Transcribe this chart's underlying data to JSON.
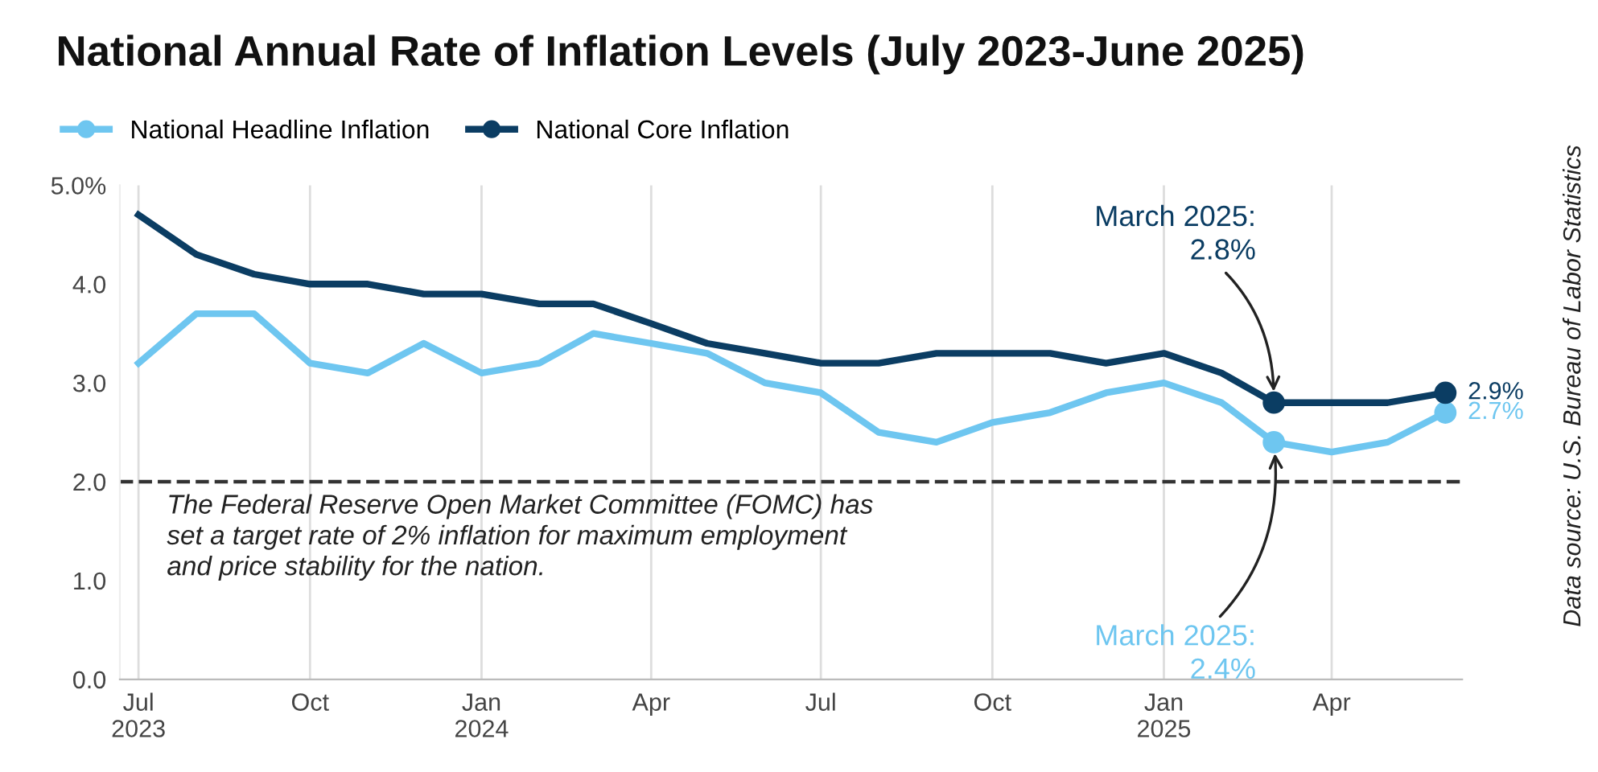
{
  "chart_data": {
    "type": "line",
    "title": "National Annual Rate of Inflation Levels (July 2023-June 2025)",
    "x": [
      "2023-07",
      "2023-08",
      "2023-09",
      "2023-10",
      "2023-11",
      "2023-12",
      "2024-01",
      "2024-02",
      "2024-03",
      "2024-04",
      "2024-05",
      "2024-06",
      "2024-07",
      "2024-08",
      "2024-09",
      "2024-10",
      "2024-11",
      "2024-12",
      "2025-01",
      "2025-02",
      "2025-03",
      "2025-04",
      "2025-05",
      "2025-06"
    ],
    "series": [
      {
        "name": "National Headline Inflation",
        "color": "#6ec6f0",
        "values": [
          3.2,
          3.7,
          3.7,
          3.2,
          3.1,
          3.4,
          3.1,
          3.2,
          3.5,
          3.4,
          3.3,
          3.0,
          2.9,
          2.5,
          2.4,
          2.6,
          2.7,
          2.9,
          3.0,
          2.8,
          2.4,
          2.3,
          2.4,
          2.7
        ],
        "value_labels": [
          null,
          null,
          null,
          null,
          null,
          null,
          null,
          null,
          null,
          null,
          null,
          null,
          null,
          null,
          null,
          null,
          null,
          null,
          null,
          null,
          null,
          null,
          null,
          "2.7%"
        ]
      },
      {
        "name": "National Core Inflation",
        "color": "#0b3d63",
        "values": [
          4.7,
          4.3,
          4.1,
          4.0,
          4.0,
          3.9,
          3.9,
          3.8,
          3.8,
          3.6,
          3.4,
          3.3,
          3.2,
          3.2,
          3.3,
          3.3,
          3.3,
          3.2,
          3.3,
          3.1,
          2.8,
          2.8,
          2.8,
          2.9
        ],
        "value_labels": [
          null,
          null,
          null,
          null,
          null,
          null,
          null,
          null,
          null,
          null,
          null,
          null,
          null,
          null,
          null,
          null,
          null,
          null,
          null,
          null,
          null,
          null,
          null,
          "2.9%"
        ]
      }
    ],
    "xlim": [
      "2023-06-21",
      "2025-06-10"
    ],
    "xticks": [
      {
        "value": "2023-07",
        "label": "Jul\n2023"
      },
      {
        "value": "2023-10",
        "label": "Oct"
      },
      {
        "value": "2024-01",
        "label": "Jan\n2024"
      },
      {
        "value": "2024-04",
        "label": "Apr"
      },
      {
        "value": "2024-07",
        "label": "Jul"
      },
      {
        "value": "2024-10",
        "label": "Oct"
      },
      {
        "value": "2025-01",
        "label": "Jan\n2025"
      },
      {
        "value": "2025-04",
        "label": "Apr"
      }
    ],
    "ylim": [
      0,
      5
    ],
    "yticks": [
      {
        "value": 0,
        "label": "0.0"
      },
      {
        "value": 1,
        "label": "1.0"
      },
      {
        "value": 2,
        "label": "2.0"
      },
      {
        "value": 3,
        "label": "3.0"
      },
      {
        "value": 4,
        "label": "4.0"
      },
      {
        "value": 5,
        "label": "5.0%"
      }
    ],
    "ref_lines": [
      {
        "axis": "y",
        "value": 2,
        "color": "#333333",
        "line_style": "dashed"
      }
    ],
    "annotations": [
      {
        "text": "March 2025:\n2.8%",
        "x": "2025-03",
        "y": 2.8
      },
      {
        "text": "March 2025:\n2.4%",
        "x": "2025-03",
        "y": 2.4
      },
      "The Federal Reserve Open Market Committee (FOMC) has\nset a target rate of 2% inflation for maximum employment\nand price stability for the nation.",
      "Data source: U.S. Bureau of Labor Statistics"
    ],
    "grid": "x",
    "legend": "top left",
    "marker": "none",
    "line_style": "solid"
  }
}
